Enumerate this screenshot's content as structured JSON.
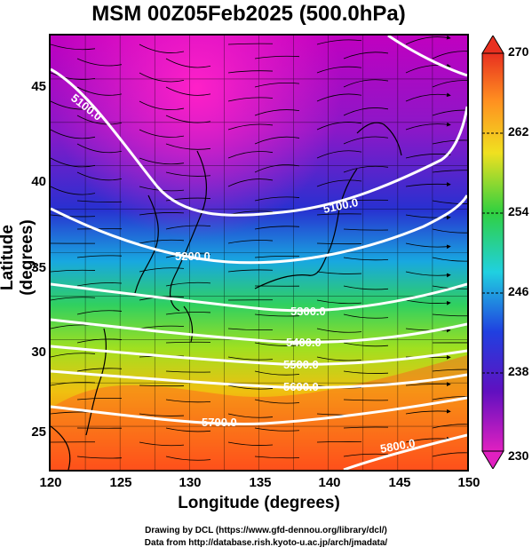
{
  "title": "MSM 00Z05Feb2025 (500.0hPa)",
  "x_axis": {
    "label": "Longitude (degrees)",
    "ticks": [
      "120",
      "125",
      "130",
      "135",
      "140",
      "145",
      "150"
    ]
  },
  "y_axis": {
    "label": "Latitude  (degrees)",
    "ticks": [
      "25",
      "30",
      "35",
      "40",
      "45"
    ]
  },
  "colorbar": {
    "ticks": [
      "270",
      "262",
      "254",
      "246",
      "238",
      "230"
    ],
    "min": 230,
    "max": 270
  },
  "credits": {
    "line1": "Drawing by DCL (https://www.gfd-dennou.org/library/dcl/)",
    "line2": "Data from http://database.rish.kyoto-u.ac.jp/arch/jmadata/"
  },
  "contours": [
    {
      "label": "5100.0"
    },
    {
      "label": "5100.0"
    },
    {
      "label": "5200.0"
    },
    {
      "label": "5300.0"
    },
    {
      "label": "5400.0"
    },
    {
      "label": "5500.0"
    },
    {
      "label": "5600.0"
    },
    {
      "label": "5700.0"
    },
    {
      "label": "5800.0"
    }
  ],
  "colors": {
    "cold": "#c800c8",
    "mid": "#2020d0",
    "warm": "#ff4010",
    "contour": "#ffffff",
    "vector": "#000000"
  }
}
